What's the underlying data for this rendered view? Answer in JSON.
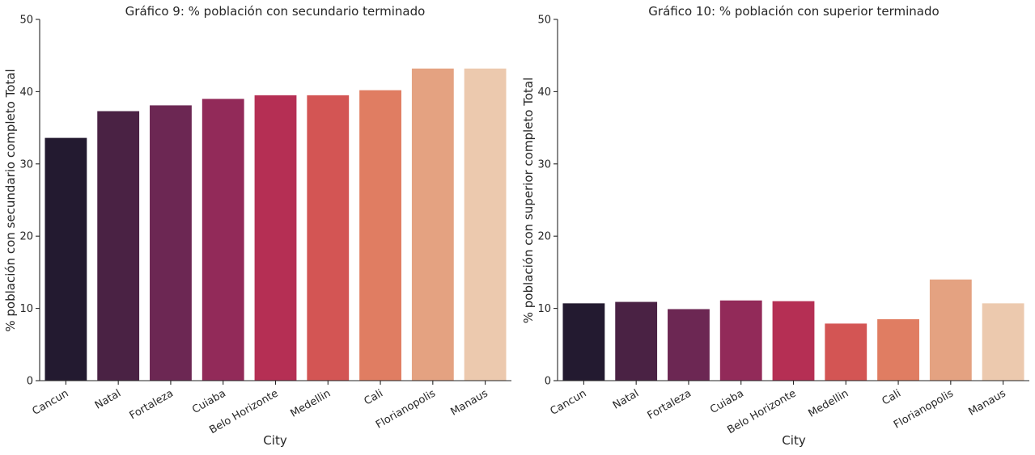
{
  "colors": [
    "#231a30",
    "#4a2244",
    "#6c2753",
    "#922a59",
    "#b52f54",
    "#d35554",
    "#e07d62",
    "#e4a281",
    "#ecc9ae"
  ],
  "chart_data": [
    {
      "type": "bar",
      "title": "Gráfico 9: % población con secundario terminado",
      "xlabel": "City",
      "ylabel": "% población con secundario completo Total",
      "categories": [
        "Cancun",
        "Natal",
        "Fortaleza",
        "Cuiaba",
        "Belo Horizonte",
        "Medellin",
        "Cali",
        "Florianopolis",
        "Manaus"
      ],
      "values": [
        33.6,
        37.3,
        38.1,
        39.0,
        39.5,
        39.5,
        40.2,
        43.2,
        43.2
      ],
      "ylim": [
        0,
        50
      ],
      "yticks": [
        "0",
        "10",
        "20",
        "30",
        "40",
        "50"
      ],
      "grid": false
    },
    {
      "type": "bar",
      "title": "Gráfico 10: % población con superior terminado",
      "xlabel": "City",
      "ylabel": "% población con superior completo Total",
      "categories": [
        "Cancun",
        "Natal",
        "Fortaleza",
        "Cuiaba",
        "Belo Horizonte",
        "Medellin",
        "Cali",
        "Florianopolis",
        "Manaus"
      ],
      "values": [
        10.7,
        10.9,
        9.9,
        11.1,
        11.0,
        7.9,
        8.5,
        14.0,
        10.7
      ],
      "ylim": [
        0,
        50
      ],
      "yticks": [
        "0",
        "10",
        "20",
        "30",
        "40",
        "50"
      ],
      "grid": false
    }
  ]
}
